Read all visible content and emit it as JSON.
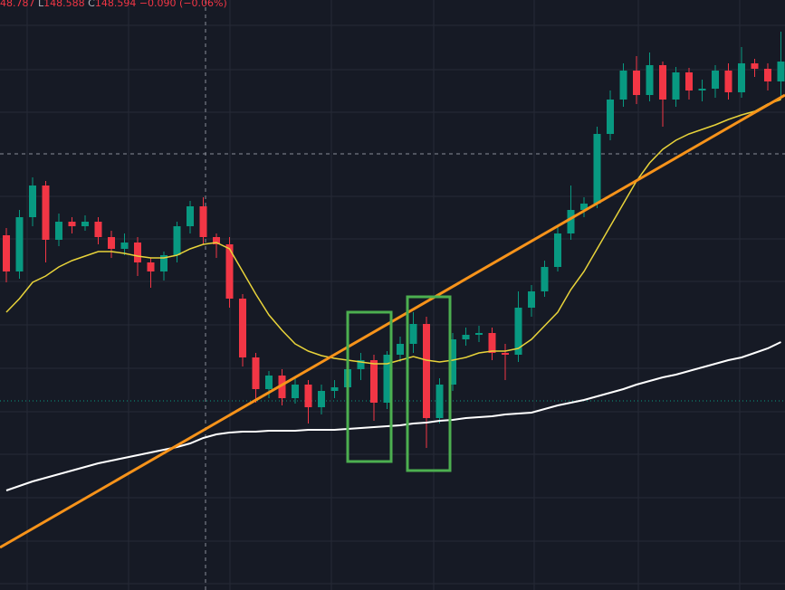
{
  "header": {
    "open_partial": "48.787",
    "low_label": "L",
    "low": "148.588",
    "close_label": "C",
    "close": "148.594",
    "change": "−0.090 (−0.06%)"
  },
  "chart_data": {
    "type": "candlestick",
    "ylim": [
      0,
      652
    ],
    "up_color": "#089981",
    "down_color": "#f23645",
    "candles": [
      [
        392,
        400,
        340,
        352
      ],
      [
        352,
        420,
        344,
        412
      ],
      [
        412,
        456,
        402,
        447
      ],
      [
        447,
        452,
        362,
        387
      ],
      [
        387,
        416,
        380,
        407
      ],
      [
        407,
        412,
        394,
        402
      ],
      [
        402,
        414,
        397,
        407
      ],
      [
        407,
        412,
        382,
        390
      ],
      [
        390,
        397,
        367,
        377
      ],
      [
        377,
        394,
        370,
        384
      ],
      [
        384,
        390,
        347,
        362
      ],
      [
        362,
        367,
        334,
        352
      ],
      [
        352,
        374,
        342,
        370
      ],
      [
        370,
        407,
        362,
        402
      ],
      [
        402,
        430,
        394,
        424
      ],
      [
        424,
        434,
        382,
        390
      ],
      [
        390,
        394,
        367,
        382
      ],
      [
        382,
        390,
        312,
        322
      ],
      [
        322,
        327,
        247,
        257
      ],
      [
        257,
        262,
        207,
        222
      ],
      [
        222,
        242,
        212,
        237
      ],
      [
        237,
        244,
        204,
        212
      ],
      [
        212,
        234,
        206,
        227
      ],
      [
        227,
        232,
        184,
        202
      ],
      [
        202,
        227,
        194,
        220
      ],
      [
        220,
        232,
        212,
        224
      ],
      [
        224,
        252,
        216,
        244
      ],
      [
        244,
        262,
        232,
        254
      ],
      [
        254,
        260,
        187,
        207
      ],
      [
        207,
        264,
        200,
        260
      ],
      [
        260,
        280,
        252,
        272
      ],
      [
        272,
        307,
        262,
        294
      ],
      [
        294,
        302,
        157,
        190
      ],
      [
        190,
        234,
        184,
        227
      ],
      [
        227,
        284,
        220,
        277
      ],
      [
        277,
        290,
        270,
        282
      ],
      [
        282,
        292,
        274,
        284
      ],
      [
        284,
        290,
        254,
        262
      ],
      [
        262,
        272,
        232,
        260
      ],
      [
        260,
        330,
        252,
        312
      ],
      [
        312,
        337,
        302,
        330
      ],
      [
        330,
        364,
        324,
        357
      ],
      [
        357,
        402,
        352,
        394
      ],
      [
        394,
        447,
        387,
        420
      ],
      [
        420,
        434,
        412,
        427
      ],
      [
        427,
        512,
        422,
        504
      ],
      [
        504,
        552,
        497,
        542
      ],
      [
        542,
        582,
        534,
        574
      ],
      [
        574,
        590,
        537,
        547
      ],
      [
        547,
        594,
        540,
        580
      ],
      [
        580,
        584,
        512,
        542
      ],
      [
        542,
        578,
        534,
        572
      ],
      [
        572,
        577,
        542,
        552
      ],
      [
        552,
        564,
        540,
        554
      ],
      [
        554,
        580,
        544,
        574
      ],
      [
        574,
        582,
        542,
        550
      ],
      [
        550,
        600,
        544,
        582
      ],
      [
        582,
        587,
        567,
        576
      ],
      [
        576,
        582,
        552,
        562
      ],
      [
        562,
        617,
        542,
        584
      ]
    ],
    "series": [
      {
        "color": "#e8d33a",
        "values": [
          307,
          322,
          340,
          347,
          357,
          364,
          369,
          374,
          374,
          372,
          369,
          367,
          367,
          370,
          377,
          382,
          384,
          377,
          352,
          327,
          304,
          287,
          272,
          264,
          259,
          256,
          254,
          252,
          250,
          250,
          254,
          258,
          254,
          252,
          254,
          257,
          262,
          264,
          264,
          267,
          277,
          292,
          307,
          332,
          352,
          377,
          402,
          427,
          452,
          472,
          487,
          497,
          504,
          509,
          514,
          520,
          525,
          529,
          537,
          542
        ]
      },
      {
        "color": "#ffffff",
        "values": [
          110,
          115,
          120,
          124,
          128,
          132,
          136,
          140,
          143,
          146,
          149,
          152,
          155,
          158,
          162,
          168,
          172,
          174,
          175,
          175,
          176,
          176,
          176,
          177,
          177,
          177,
          178,
          179,
          180,
          181,
          182,
          184,
          185,
          187,
          188,
          190,
          191,
          192,
          194,
          195,
          196,
          200,
          204,
          207,
          210,
          214,
          218,
          222,
          227,
          231,
          235,
          238,
          242,
          246,
          250,
          254,
          257,
          262,
          267,
          274
        ]
      }
    ]
  }
}
